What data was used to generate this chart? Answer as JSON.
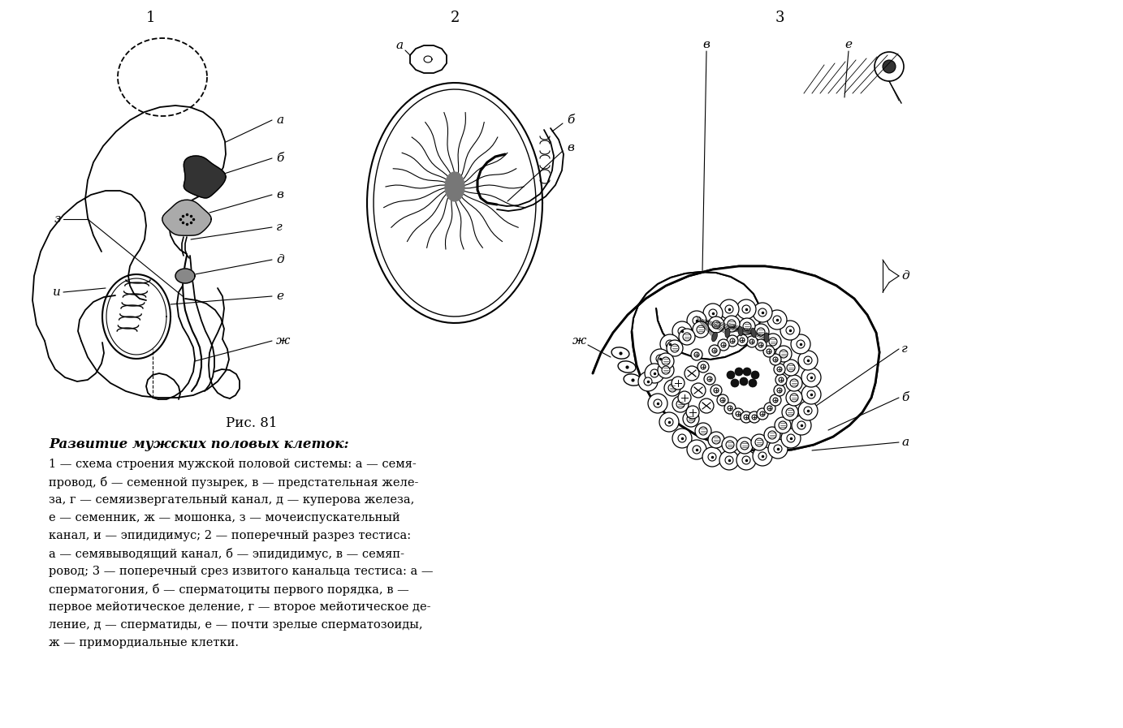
{
  "title": "Рис. 81",
  "bold_title": "Развитие мужских половых клеток:",
  "caption_lines": [
    "1 — схема строения мужской половой системы: а — семя-",
    "провод, б — семенной пузырек, в — предстательная желе-",
    "за, г — семяизвергательный канал, д — куперова железа,",
    "е — семенник, ж — мошонка, з — мочеиспускательный",
    "канал, и — эпидидимус; 2 — поперечный разрез тестиса:",
    "а — семявыводящий канал, б — эпидидимус, в — семяп-",
    "ровод; 3 — поперечный срез извитого канальца тестиса: а —",
    "сперматогония, б — сперматоциты первого порядка, в —",
    "первое мейотическое деление, г — второе мейотическое де-",
    "ление, д — сперматиды, е — почти зрелые сперматозоиды,",
    "ж — примордиальные клетки."
  ],
  "background_color": "#ffffff"
}
